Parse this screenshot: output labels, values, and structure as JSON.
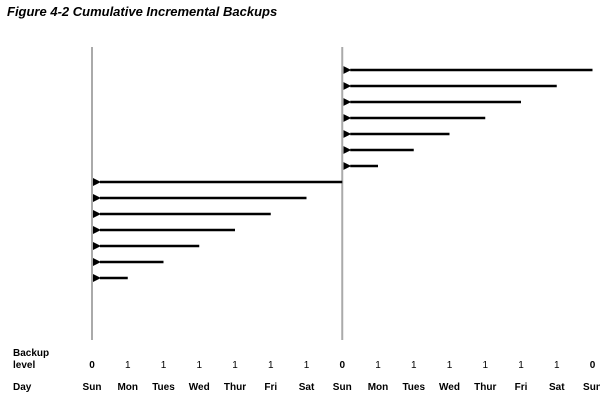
{
  "figure": {
    "title": "Figure 4-2 Cumulative Incremental Backups"
  },
  "labels": {
    "backup": "Backup",
    "level": "level",
    "day": "Day"
  },
  "colors": {
    "arrow": "#000000",
    "divider": "#aaaaaa",
    "text": "#000000"
  },
  "timeline": [
    {
      "day": "Sun",
      "level": "0"
    },
    {
      "day": "Mon",
      "level": "1"
    },
    {
      "day": "Tues",
      "level": "1"
    },
    {
      "day": "Wed",
      "level": "1"
    },
    {
      "day": "Thur",
      "level": "1"
    },
    {
      "day": "Fri",
      "level": "1"
    },
    {
      "day": "Sat",
      "level": "1"
    },
    {
      "day": "Sun",
      "level": "0"
    },
    {
      "day": "Mon",
      "level": "1"
    },
    {
      "day": "Tues",
      "level": "1"
    },
    {
      "day": "Wed",
      "level": "1"
    },
    {
      "day": "Thur",
      "level": "1"
    },
    {
      "day": "Fri",
      "level": "1"
    },
    {
      "day": "Sat",
      "level": "1"
    },
    {
      "day": "Sun",
      "level": "0"
    }
  ],
  "backups": [
    {
      "from_day_index": 7,
      "to_day_index": 0
    },
    {
      "from_day_index": 6,
      "to_day_index": 0
    },
    {
      "from_day_index": 5,
      "to_day_index": 0
    },
    {
      "from_day_index": 4,
      "to_day_index": 0
    },
    {
      "from_day_index": 3,
      "to_day_index": 0
    },
    {
      "from_day_index": 2,
      "to_day_index": 0
    },
    {
      "from_day_index": 1,
      "to_day_index": 0
    },
    {
      "from_day_index": 14,
      "to_day_index": 7
    },
    {
      "from_day_index": 13,
      "to_day_index": 7
    },
    {
      "from_day_index": 12,
      "to_day_index": 7
    },
    {
      "from_day_index": 11,
      "to_day_index": 7
    },
    {
      "from_day_index": 10,
      "to_day_index": 7
    },
    {
      "from_day_index": 9,
      "to_day_index": 7
    },
    {
      "from_day_index": 8,
      "to_day_index": 7
    }
  ],
  "full_backup_day_indices": [
    0,
    7
  ]
}
